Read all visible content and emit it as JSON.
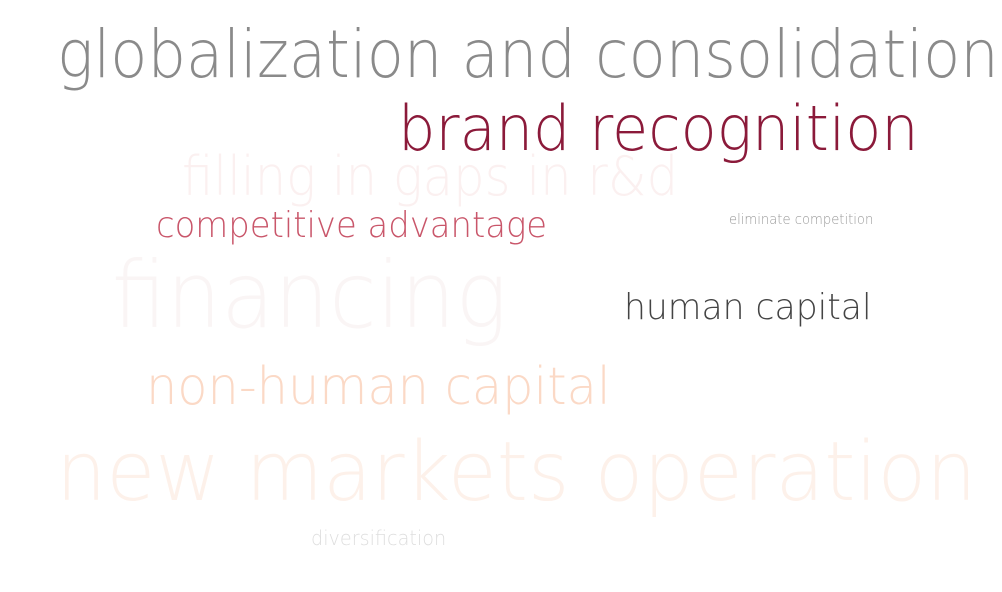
{
  "word_cloud": {
    "words": [
      {
        "text": "globalization and consolidation",
        "color": "#8a8a8a"
      },
      {
        "text": "brand recognition",
        "color": "#8b1a3a"
      },
      {
        "text": "filling in gaps in r&d",
        "color": "#fbf0f0"
      },
      {
        "text": "competitive advantage",
        "color": "#c9566a"
      },
      {
        "text": "eliminate competition",
        "color": "#9a9a9a"
      },
      {
        "text": "financing",
        "color": "#faf5f5"
      },
      {
        "text": "human capital",
        "color": "#444444"
      },
      {
        "text": "non-human capital",
        "color": "#fbd9c6"
      },
      {
        "text": "new markets operation",
        "color": "#fdf1ea"
      },
      {
        "text": "diversification",
        "color": "#dedede"
      }
    ]
  }
}
